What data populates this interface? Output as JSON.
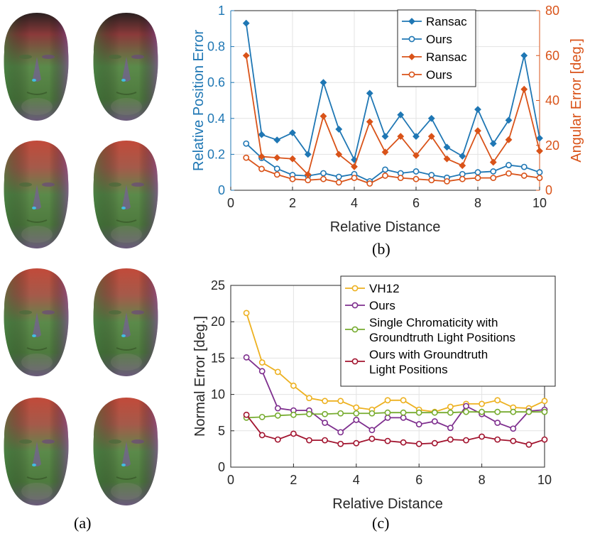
{
  "captions": {
    "a": "(a)",
    "b": "(b)",
    "c": "(c)"
  },
  "faces": {
    "rows": 4,
    "cols": 2
  },
  "colors": {
    "blue": "#1f77b4",
    "orange": "#d95319",
    "vh12": "#edb120",
    "purple": "#7e2f8e",
    "green": "#77ac30",
    "darkred": "#a2142f"
  },
  "chart_data": [
    {
      "id": "b",
      "type": "line",
      "xlabel": "Relative Distance",
      "ylabel": "Relative Position Error",
      "y2label": "Angular Error [deg.]",
      "xlim": [
        0,
        10
      ],
      "ylim": [
        0,
        1
      ],
      "y2lim": [
        0,
        80
      ],
      "xticks": [
        0,
        2,
        4,
        6,
        8,
        10
      ],
      "yticks": [
        0,
        0.2,
        0.4,
        0.6,
        0.8,
        1
      ],
      "y2ticks": [
        0,
        20,
        40,
        60,
        80
      ],
      "x": [
        0.5,
        1,
        1.5,
        2,
        2.5,
        3,
        3.5,
        4,
        4.5,
        5,
        5.5,
        6,
        6.5,
        7,
        7.5,
        8,
        8.5,
        9,
        9.5,
        10
      ],
      "legend_position": "top-right",
      "series": [
        {
          "name": "Ransac",
          "axis": "left",
          "marker": "diamond",
          "color": "#1f77b4",
          "values": [
            0.93,
            0.31,
            0.28,
            0.32,
            0.2,
            0.6,
            0.34,
            0.17,
            0.54,
            0.3,
            0.42,
            0.3,
            0.4,
            0.24,
            0.19,
            0.45,
            0.26,
            0.39,
            0.75,
            0.29
          ]
        },
        {
          "name": "Ours",
          "axis": "left",
          "marker": "circle",
          "color": "#1f77b4",
          "values": [
            0.26,
            0.18,
            0.12,
            0.085,
            0.08,
            0.095,
            0.075,
            0.09,
            0.05,
            0.115,
            0.095,
            0.105,
            0.085,
            0.07,
            0.09,
            0.1,
            0.105,
            0.14,
            0.13,
            0.1
          ]
        },
        {
          "name": "Ransac",
          "axis": "right",
          "marker": "diamond",
          "color": "#d95319",
          "values": [
            60,
            15,
            14.5,
            14,
            7,
            33,
            16,
            10.5,
            30.5,
            17,
            24,
            15.5,
            24,
            14,
            11,
            26.5,
            12.5,
            22.5,
            45,
            17.5
          ]
        },
        {
          "name": "Ours",
          "axis": "right",
          "marker": "circle",
          "color": "#d95319",
          "values": [
            14.5,
            9.5,
            7,
            5,
            4.5,
            5,
            3.5,
            5.5,
            3,
            6.5,
            5.5,
            5,
            4.5,
            4,
            5,
            5.5,
            5.5,
            7.5,
            6.5,
            5.5
          ]
        }
      ]
    },
    {
      "id": "c",
      "type": "line",
      "xlabel": "Relative Distance",
      "ylabel": "Normal Error [deg.]",
      "xlim": [
        0,
        10
      ],
      "ylim": [
        0,
        25
      ],
      "xticks": [
        0,
        2,
        4,
        6,
        8,
        10
      ],
      "yticks": [
        0,
        5,
        10,
        15,
        20,
        25
      ],
      "x": [
        0.5,
        1,
        1.5,
        2,
        2.5,
        3,
        3.5,
        4,
        4.5,
        5,
        5.5,
        6,
        6.5,
        7,
        7.5,
        8,
        8.5,
        9,
        9.5,
        10
      ],
      "legend_position": "top-right",
      "series": [
        {
          "name": "VH12",
          "legend_lines": [
            "VH12"
          ],
          "marker": "circle",
          "color": "#edb120",
          "values": [
            21.2,
            14.4,
            13.1,
            11.2,
            9.5,
            9.1,
            9.1,
            8.2,
            7.9,
            9.2,
            9.2,
            7.9,
            7.6,
            8.3,
            8.7,
            8.7,
            9.2,
            8.2,
            8.1,
            9.1
          ]
        },
        {
          "name": "Ours",
          "legend_lines": [
            "Ours"
          ],
          "marker": "circle",
          "color": "#7e2f8e",
          "values": [
            15.1,
            13.2,
            8.1,
            7.8,
            7.8,
            6.1,
            4.8,
            6.5,
            5.1,
            6.8,
            6.8,
            5.9,
            6.3,
            5.4,
            8.4,
            7.3,
            6.1,
            5.3,
            7.7,
            7.9
          ]
        },
        {
          "name": "Single Chromaticity with Groundtruth Light Positions",
          "legend_lines": [
            "Single Chromaticity with",
            "Groundtruth Light Positions"
          ],
          "marker": "circle",
          "color": "#77ac30",
          "values": [
            6.8,
            6.9,
            7.1,
            7.2,
            7.3,
            7.3,
            7.4,
            7.4,
            7.4,
            7.5,
            7.5,
            7.5,
            7.5,
            7.5,
            7.6,
            7.6,
            7.6,
            7.6,
            7.6,
            7.6
          ]
        },
        {
          "name": "Ours with Groundtruth Light Positions",
          "legend_lines": [
            "Ours with Groundtruth",
            "Light Positions"
          ],
          "marker": "circle",
          "color": "#a2142f",
          "values": [
            7.2,
            4.4,
            3.8,
            4.6,
            3.7,
            3.7,
            3.2,
            3.3,
            3.9,
            3.6,
            3.4,
            3.2,
            3.3,
            3.8,
            3.7,
            4.2,
            3.8,
            3.6,
            3.1,
            3.8
          ]
        }
      ]
    }
  ]
}
